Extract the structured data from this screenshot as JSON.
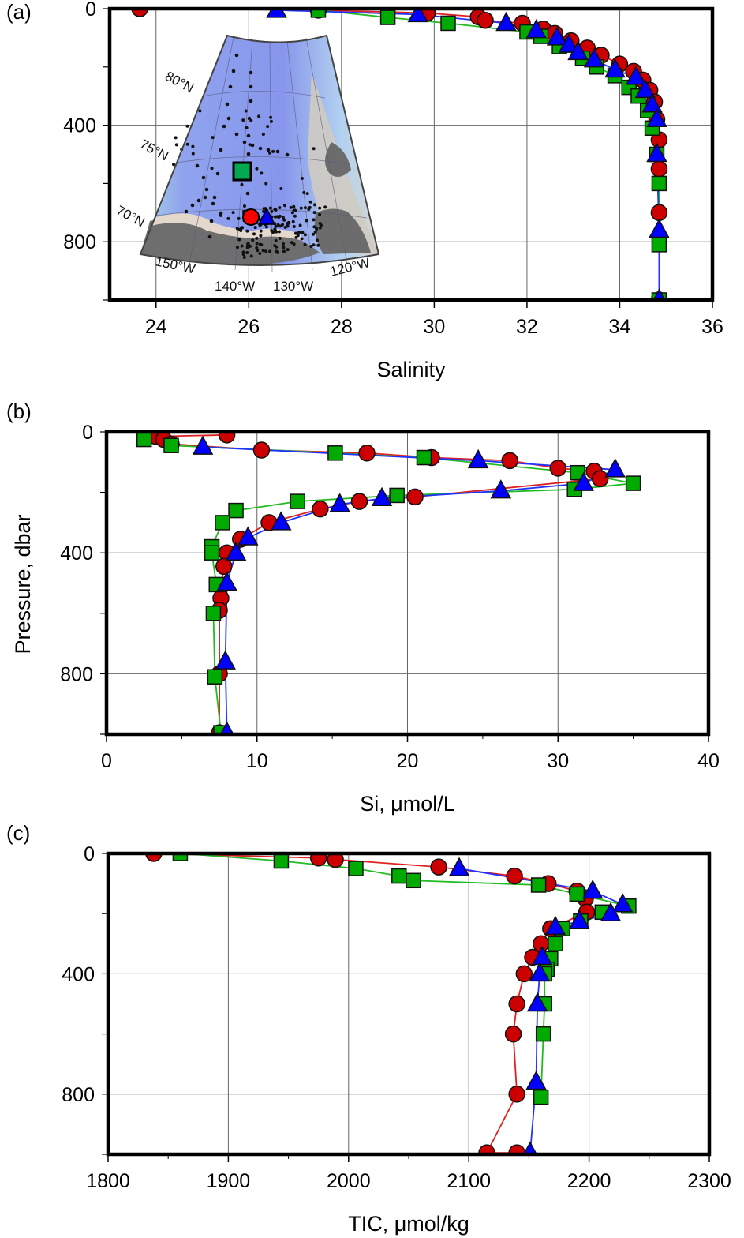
{
  "figure": {
    "ylabel": "Pressure, dbar",
    "colors": {
      "red_circle": "#d40000",
      "green_square": "#00a800",
      "blue_triangle": "#0000ee",
      "grid": "#555555",
      "frame": "#000000"
    }
  },
  "chart_data": [
    {
      "panel": "(a)",
      "type": "line",
      "title": "",
      "xlabel": "Salinity",
      "ylabel": "Pressure, dbar",
      "xlim": [
        23,
        36
      ],
      "ylim": [
        1000,
        0
      ],
      "xticks": [
        "24",
        "26",
        "28",
        "30",
        "32",
        "34",
        "36"
      ],
      "yticks": [
        "0",
        "400",
        "800"
      ],
      "grid": true,
      "series": [
        {
          "name": "red-circle-station",
          "marker": "circle",
          "color": "#d40000",
          "x": [
            23.65,
            27.5,
            29.85,
            30.95,
            31.1,
            31.9,
            32.35,
            32.6,
            32.95,
            33.3,
            33.6,
            34.0,
            34.3,
            34.5,
            34.65,
            34.75,
            34.8,
            34.85,
            34.85,
            34.85,
            34.85
          ],
          "y": [
            0,
            5,
            15,
            28,
            40,
            50,
            70,
            85,
            110,
            135,
            160,
            190,
            215,
            245,
            280,
            320,
            380,
            450,
            550,
            700,
            1000
          ]
        },
        {
          "name": "green-square-station",
          "marker": "square",
          "color": "#00a800",
          "x": [
            27.5,
            29.0,
            30.3,
            32.0,
            32.3,
            32.7,
            33.2,
            33.5,
            33.9,
            34.2,
            34.4,
            34.6,
            34.7,
            34.8,
            34.85,
            34.85,
            34.85
          ],
          "y": [
            5,
            30,
            50,
            80,
            95,
            130,
            170,
            200,
            230,
            270,
            300,
            350,
            410,
            500,
            600,
            810,
            1000
          ]
        },
        {
          "name": "blue-triangle-station",
          "marker": "triangle",
          "color": "#0000ee",
          "x": [
            26.6,
            29.65,
            31.55,
            32.2,
            32.65,
            32.9,
            33.1,
            33.45,
            33.9,
            34.35,
            34.55,
            34.7,
            34.8,
            34.8,
            34.85,
            34.85
          ],
          "y": [
            5,
            20,
            50,
            75,
            100,
            125,
            150,
            175,
            210,
            235,
            280,
            330,
            380,
            500,
            760,
            1000
          ]
        }
      ],
      "inset_map": {
        "latitude_labels": [
          "80°N",
          "75°N",
          "70°N"
        ],
        "longitude_labels": [
          "150°W",
          "140°W",
          "130°W",
          "120°W"
        ],
        "markers": [
          "green-square",
          "red-circle",
          "blue-triangle"
        ]
      }
    },
    {
      "panel": "(b)",
      "type": "line",
      "title": "",
      "xlabel": "Si, μmol/L",
      "ylabel": "Pressure, dbar",
      "xlim": [
        0,
        40
      ],
      "ylim": [
        1000,
        0
      ],
      "xticks": [
        "0",
        "10",
        "20",
        "30",
        "40"
      ],
      "yticks": [
        "0",
        "400",
        "800"
      ],
      "grid": true,
      "series": [
        {
          "name": "red-circle-station",
          "marker": "circle",
          "color": "#d40000",
          "x": [
            8.0,
            3.3,
            3.8,
            4.3,
            10.3,
            17.3,
            21.6,
            26.8,
            30.0,
            32.4,
            32.8,
            20.5,
            16.8,
            14.2,
            10.8,
            8.9,
            8.0,
            7.8,
            7.6,
            7.6,
            7.5,
            7.5,
            7.5
          ],
          "y": [
            10,
            15,
            25,
            40,
            60,
            70,
            85,
            95,
            120,
            130,
            155,
            215,
            230,
            255,
            300,
            355,
            400,
            445,
            510,
            550,
            590,
            800,
            995
          ]
        },
        {
          "name": "green-square-station",
          "marker": "square",
          "color": "#00a800",
          "x": [
            2.5,
            4.3,
            15.2,
            21.1,
            31.3,
            35.0,
            31.1,
            19.3,
            12.7,
            8.6,
            7.7,
            7.0,
            7.0,
            7.3,
            7.1,
            7.2,
            7.6
          ],
          "y": [
            25,
            45,
            70,
            85,
            135,
            170,
            190,
            210,
            230,
            260,
            300,
            380,
            400,
            505,
            600,
            810,
            995
          ]
        },
        {
          "name": "blue-triangle-station",
          "marker": "triangle",
          "color": "#0000ee",
          "x": [
            6.4,
            24.7,
            33.8,
            31.7,
            26.2,
            18.3,
            15.5,
            11.6,
            9.4,
            8.6,
            8.0,
            7.9,
            8.0
          ],
          "y": [
            50,
            95,
            125,
            170,
            195,
            220,
            240,
            300,
            350,
            400,
            500,
            760,
            995
          ]
        }
      ]
    },
    {
      "panel": "(c)",
      "type": "line",
      "title": "",
      "xlabel": "TIC, μmol/kg",
      "ylabel": "Pressure, dbar",
      "xlim": [
        1800,
        2300
      ],
      "ylim": [
        1000,
        0
      ],
      "xticks": [
        "1800",
        "1900",
        "2000",
        "2100",
        "2200",
        "2300"
      ],
      "yticks": [
        "0",
        "400",
        "800"
      ],
      "grid": true,
      "series": [
        {
          "name": "red-circle-station",
          "marker": "circle",
          "color": "#d40000",
          "x": [
            1838,
            1975,
            1989,
            2075,
            2138,
            2166,
            2190,
            2197,
            2198,
            2168,
            2160,
            2153,
            2146,
            2140,
            2137,
            2140,
            2115,
            2140
          ],
          "y": [
            0,
            15,
            20,
            45,
            75,
            100,
            125,
            150,
            195,
            250,
            300,
            345,
            400,
            500,
            600,
            800,
            995,
            995
          ]
        },
        {
          "name": "green-square-station",
          "marker": "square",
          "color": "#00a800",
          "x": [
            1860,
            1944,
            2006,
            2042,
            2054,
            2158,
            2190,
            2233,
            2211,
            2193,
            2178,
            2172,
            2168,
            2165,
            2163,
            2163,
            2162,
            2160
          ],
          "y": [
            0,
            25,
            50,
            75,
            90,
            105,
            135,
            175,
            195,
            225,
            250,
            300,
            350,
            385,
            400,
            500,
            600,
            810
          ]
        },
        {
          "name": "blue-triangle-station",
          "marker": "triangle",
          "color": "#0000ee",
          "x": [
            2092,
            2203,
            2228,
            2218,
            2192,
            2172,
            2161,
            2159,
            2157,
            2156,
            2151
          ],
          "y": [
            50,
            125,
            170,
            200,
            225,
            245,
            345,
            400,
            500,
            760,
            995
          ]
        }
      ]
    }
  ],
  "panels_text": {
    "a_label": "(a)",
    "b_label": "(b)",
    "c_label": "(c)"
  }
}
